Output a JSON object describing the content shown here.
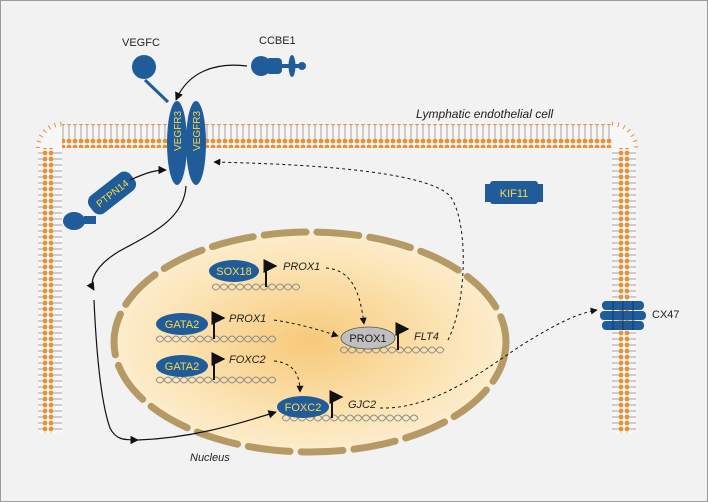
{
  "labels": {
    "vegfc": "VEGFC",
    "ccbe1": "CCBE1",
    "cell": "Lymphatic endothelial cell",
    "vegfr3": "VEGFR3",
    "ptpn14": "PTPN14",
    "kif11": "KIF11",
    "cx47": "CX47",
    "nucleus": "Nucleus",
    "sox18": "SOX18",
    "gata2": "GATA2",
    "prox1_protein": "PROX1",
    "foxc2_protein": "FOXC2",
    "prox1_gene": "PROX1",
    "foxc2_gene": "FOXC2",
    "flt4_gene": "FLT4",
    "gjc2_gene": "GJC2"
  },
  "colors": {
    "protein_blue": "#1f5c99",
    "label_yellow": "#ffd84a",
    "membrane_orange": "#e8913a",
    "nucleus_fill": "#fbe6b8",
    "nucleus_envelope": "#b59a66",
    "prox1_grey": "#bfbfbf"
  }
}
